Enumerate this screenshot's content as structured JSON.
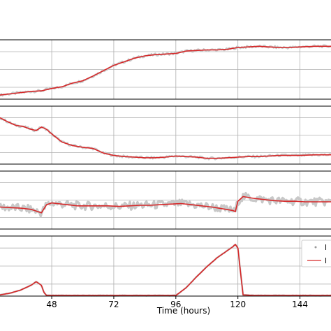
{
  "chart_data": {
    "type": "line",
    "xlabel": "Time (hours)",
    "x_ticks": [
      48,
      72,
      96,
      120,
      144
    ],
    "xlim": [
      28,
      156
    ],
    "grid": true,
    "legend": {
      "placement": "bottom-right of lowest panel",
      "entries": [
        {
          "label": "l",
          "marker": "point",
          "color": "#9a9a9a"
        },
        {
          "label": "l",
          "marker": "line",
          "color": "#d62728"
        }
      ]
    },
    "colors": {
      "raw": "#c8c8c8",
      "fit": "#d62728",
      "grid": "#b0b0b0",
      "frame": "#000000"
    },
    "panels": [
      {
        "ylim": [
          0,
          1
        ],
        "series": [
          {
            "x": [
              28,
              34,
              40,
              44,
              48,
              52,
              56,
              60,
              64,
              68,
              72,
              76,
              80,
              84,
              88,
              92,
              96,
              100,
              104,
              108,
              112,
              116,
              120,
              124,
              128,
              132,
              136,
              140,
              144,
              150,
              156
            ],
            "y": [
              0.07,
              0.1,
              0.13,
              0.14,
              0.18,
              0.21,
              0.27,
              0.31,
              0.39,
              0.48,
              0.57,
              0.63,
              0.69,
              0.73,
              0.75,
              0.76,
              0.77,
              0.81,
              0.82,
              0.83,
              0.83,
              0.84,
              0.87,
              0.88,
              0.89,
              0.88,
              0.87,
              0.87,
              0.88,
              0.89,
              0.89
            ]
          }
        ]
      },
      {
        "ylim": [
          0,
          1
        ],
        "series": [
          {
            "x": [
              28,
              31,
              34,
              37,
              40,
              42,
              44,
              46,
              48,
              50,
              52,
              56,
              60,
              64,
              68,
              72,
              76,
              80,
              84,
              88,
              92,
              96,
              100,
              104,
              108,
              112,
              116,
              120,
              124,
              128,
              132,
              136,
              140,
              144,
              150,
              156
            ],
            "y": [
              0.8,
              0.73,
              0.67,
              0.65,
              0.6,
              0.58,
              0.64,
              0.6,
              0.52,
              0.45,
              0.38,
              0.32,
              0.29,
              0.27,
              0.19,
              0.15,
              0.13,
              0.12,
              0.11,
              0.11,
              0.12,
              0.14,
              0.13,
              0.12,
              0.1,
              0.1,
              0.11,
              0.12,
              0.13,
              0.13,
              0.14,
              0.15,
              0.15,
              0.15,
              0.16,
              0.16
            ]
          }
        ]
      },
      {
        "ylim": [
          0,
          1
        ],
        "series": [
          {
            "x": [
              28,
              32,
              36,
              40,
              44,
              46,
              48,
              50,
              54,
              58,
              62,
              66,
              70,
              74,
              78,
              82,
              86,
              90,
              94,
              98,
              102,
              106,
              110,
              114,
              118,
              119,
              120,
              122,
              126,
              130,
              134,
              138,
              142,
              146,
              150,
              156
            ],
            "y": [
              0.38,
              0.37,
              0.36,
              0.34,
              0.28,
              0.42,
              0.45,
              0.44,
              0.42,
              0.4,
              0.4,
              0.4,
              0.4,
              0.39,
              0.4,
              0.41,
              0.41,
              0.42,
              0.43,
              0.44,
              0.42,
              0.4,
              0.38,
              0.35,
              0.32,
              0.3,
              0.48,
              0.56,
              0.53,
              0.51,
              0.49,
              0.48,
              0.48,
              0.47,
              0.47,
              0.47
            ]
          }
        ]
      },
      {
        "ylim": [
          0,
          1
        ],
        "series": [
          {
            "x": [
              28,
              32,
              36,
              40,
              42,
              44,
              45,
              46,
              48,
              60,
              72,
              84,
              92,
              94,
              96,
              100,
              104,
              108,
              112,
              116,
              118,
              119,
              120,
              121,
              122,
              126,
              136,
              146,
              156
            ],
            "y": [
              0.02,
              0.05,
              0.1,
              0.18,
              0.24,
              0.18,
              0.06,
              0.01,
              0.01,
              0.01,
              0.01,
              0.01,
              0.01,
              0.01,
              0.01,
              0.14,
              0.32,
              0.49,
              0.64,
              0.76,
              0.82,
              0.86,
              0.8,
              0.4,
              0.02,
              0.01,
              0.01,
              0.01,
              0.01
            ]
          }
        ]
      }
    ]
  }
}
